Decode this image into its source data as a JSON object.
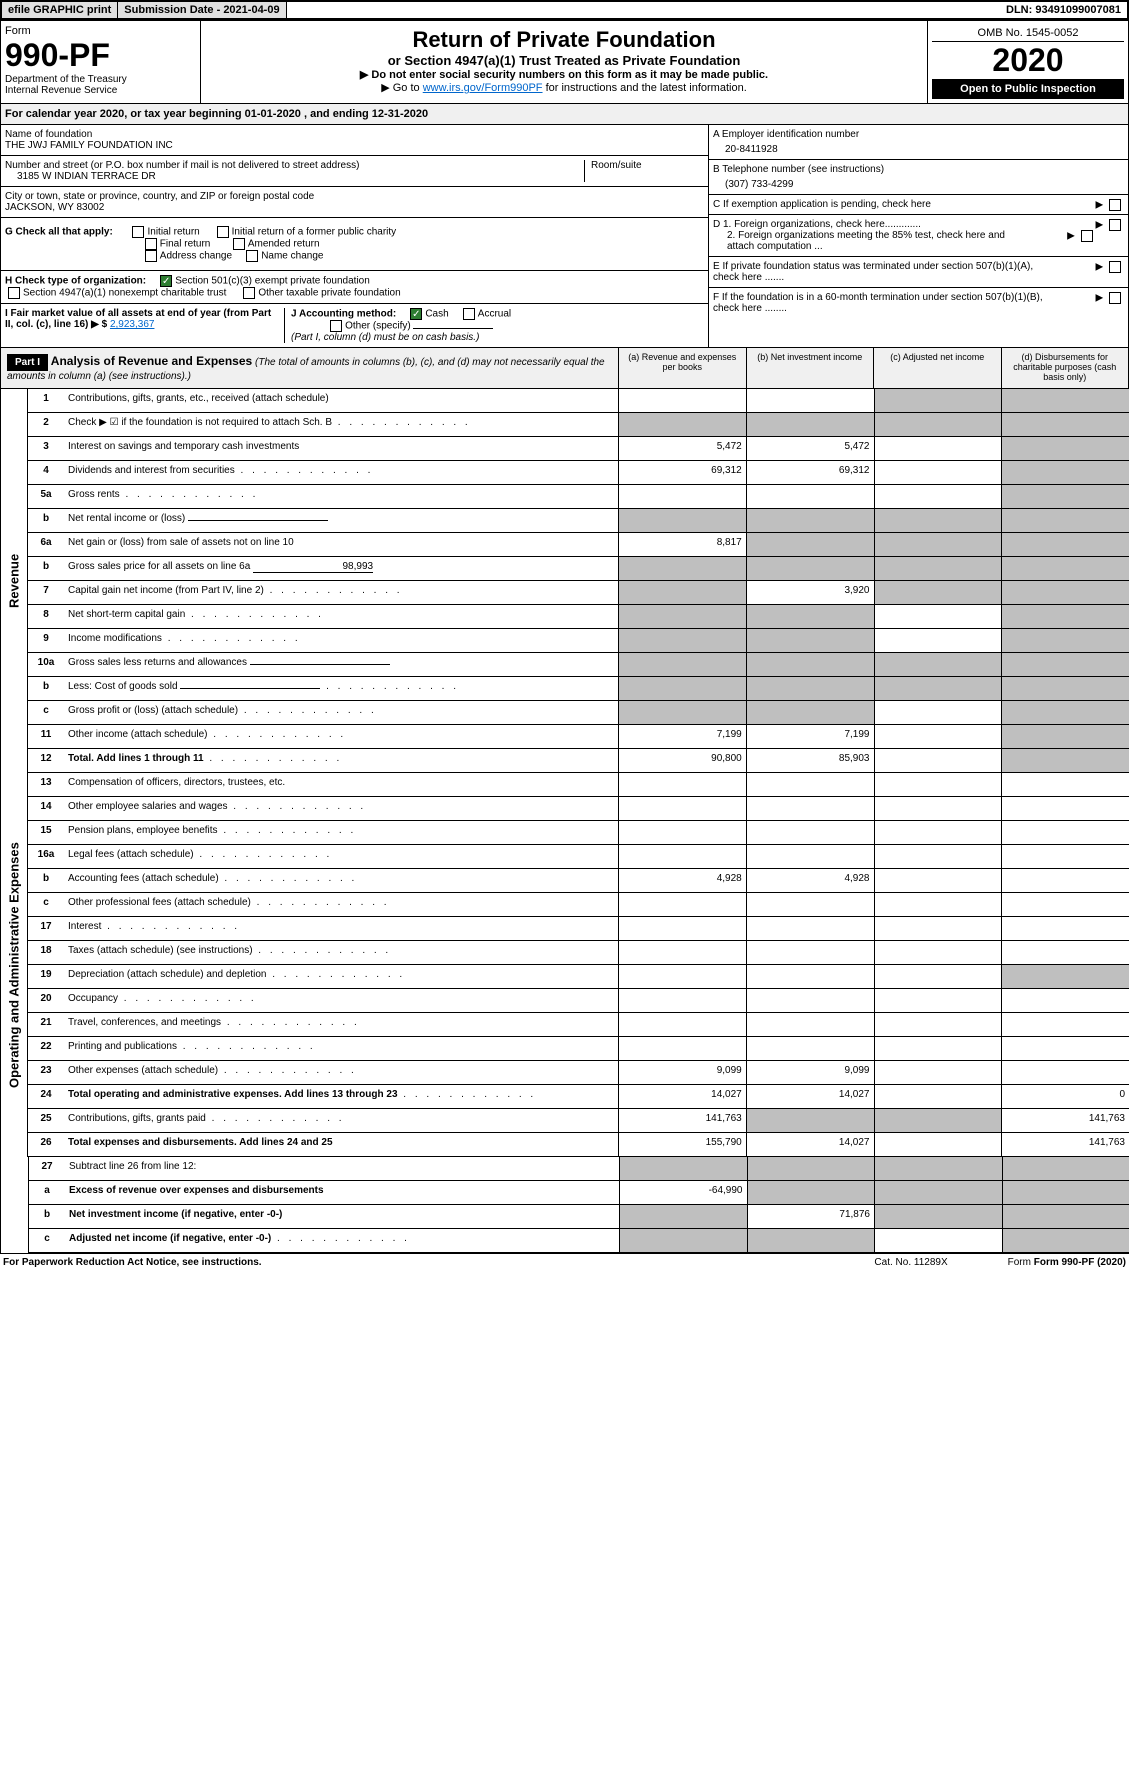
{
  "header": {
    "efile": "efile GRAPHIC print",
    "submission": "Submission Date - 2021-04-09",
    "dln": "DLN: 93491099007081"
  },
  "form": {
    "label": "Form",
    "number": "990-PF",
    "dept": "Department of the Treasury",
    "irs": "Internal Revenue Service",
    "title": "Return of Private Foundation",
    "subtitle": "or Section 4947(a)(1) Trust Treated as Private Foundation",
    "note1": "▶ Do not enter social security numbers on this form as it may be made public.",
    "note2": "▶ Go to ",
    "link": "www.irs.gov/Form990PF",
    "note3": " for instructions and the latest information.",
    "omb": "OMB No. 1545-0052",
    "year": "2020",
    "open": "Open to Public Inspection"
  },
  "calyear": "For calendar year 2020, or tax year beginning 01-01-2020                            , and ending 12-31-2020",
  "foundation": {
    "name_label": "Name of foundation",
    "name": "THE JWJ FAMILY FOUNDATION INC",
    "addr_label": "Number and street (or P.O. box number if mail is not delivered to street address)",
    "room_label": "Room/suite",
    "addr": "3185 W INDIAN TERRACE DR",
    "city_label": "City or town, state or province, country, and ZIP or foreign postal code",
    "city": "JACKSON, WY  83002"
  },
  "right_info": {
    "a_label": "A Employer identification number",
    "a_val": "20-8411928",
    "b_label": "B Telephone number (see instructions)",
    "b_val": "(307) 733-4299",
    "c_label": "C  If exemption application is pending, check here",
    "d1": "D 1. Foreign organizations, check here.............",
    "d2": "2. Foreign organizations meeting the 85% test, check here and attach computation ...",
    "e": "E  If private foundation status was terminated under section 507(b)(1)(A), check here .......",
    "f": "F  If the foundation is in a 60-month termination under section 507(b)(1)(B), check here ........"
  },
  "checks": {
    "g_label": "G Check all that apply:",
    "initial": "Initial return",
    "initial_former": "Initial return of a former public charity",
    "final": "Final return",
    "amended": "Amended return",
    "addr_change": "Address change",
    "name_change": "Name change",
    "h_label": "H Check type of organization:",
    "h1": "Section 501(c)(3) exempt private foundation",
    "h2": "Section 4947(a)(1) nonexempt charitable trust",
    "h3": "Other taxable private foundation",
    "i_label": "I Fair market value of all assets at end of year (from Part II, col. (c), line 16) ▶ $",
    "i_val": "2,923,367",
    "j_label": "J Accounting method:",
    "cash": "Cash",
    "accrual": "Accrual",
    "other": "Other (specify)",
    "j_note": "(Part I, column (d) must be on cash basis.)"
  },
  "part1": {
    "label": "Part I",
    "title": "Analysis of Revenue and Expenses",
    "title_note": "(The total of amounts in columns (b), (c), and (d) may not necessarily equal the amounts in column (a) (see instructions).)",
    "col_a": "(a)    Revenue and expenses per books",
    "col_b": "(b)  Net investment income",
    "col_c": "(c)  Adjusted net income",
    "col_d": "(d)  Disbursements for charitable purposes (cash basis only)"
  },
  "sides": {
    "revenue": "Revenue",
    "expenses": "Operating and Administrative Expenses"
  },
  "rows": [
    {
      "n": "1",
      "d": "Contributions, gifts, grants, etc., received (attach schedule)",
      "a": "",
      "b": "",
      "c": "s",
      "dd": "s"
    },
    {
      "n": "2",
      "d": "Check ▶ ☑ if the foundation is not required to attach Sch. B",
      "a": "s",
      "b": "s",
      "c": "s",
      "dd": "s",
      "dots": true
    },
    {
      "n": "3",
      "d": "Interest on savings and temporary cash investments",
      "a": "5,472",
      "b": "5,472",
      "c": "",
      "dd": "s"
    },
    {
      "n": "4",
      "d": "Dividends and interest from securities",
      "a": "69,312",
      "b": "69,312",
      "c": "",
      "dd": "s",
      "dots": true
    },
    {
      "n": "5a",
      "d": "Gross rents",
      "a": "",
      "b": "",
      "c": "",
      "dd": "s",
      "dots": true
    },
    {
      "n": "b",
      "d": "Net rental income or (loss)",
      "a": "s",
      "b": "s",
      "c": "s",
      "dd": "s",
      "uline": true
    },
    {
      "n": "6a",
      "d": "Net gain or (loss) from sale of assets not on line 10",
      "a": "8,817",
      "b": "s",
      "c": "s",
      "dd": "s"
    },
    {
      "n": "b",
      "d": "Gross sales price for all assets on line 6a",
      "a": "s",
      "b": "s",
      "c": "s",
      "dd": "s",
      "inline_val": "98,993"
    },
    {
      "n": "7",
      "d": "Capital gain net income (from Part IV, line 2)",
      "a": "s",
      "b": "3,920",
      "c": "s",
      "dd": "s",
      "dots": true
    },
    {
      "n": "8",
      "d": "Net short-term capital gain",
      "a": "s",
      "b": "s",
      "c": "",
      "dd": "s",
      "dots": true
    },
    {
      "n": "9",
      "d": "Income modifications",
      "a": "s",
      "b": "s",
      "c": "",
      "dd": "s",
      "dots": true
    },
    {
      "n": "10a",
      "d": "Gross sales less returns and allowances",
      "a": "s",
      "b": "s",
      "c": "s",
      "dd": "s",
      "uline": true
    },
    {
      "n": "b",
      "d": "Less: Cost of goods sold",
      "a": "s",
      "b": "s",
      "c": "s",
      "dd": "s",
      "dots": true,
      "uline": true
    },
    {
      "n": "c",
      "d": "Gross profit or (loss) (attach schedule)",
      "a": "s",
      "b": "s",
      "c": "",
      "dd": "s",
      "dots": true
    },
    {
      "n": "11",
      "d": "Other income (attach schedule)",
      "a": "7,199",
      "b": "7,199",
      "c": "",
      "dd": "s",
      "dots": true
    },
    {
      "n": "12",
      "d": "Total. Add lines 1 through 11",
      "a": "90,800",
      "b": "85,903",
      "c": "",
      "dd": "s",
      "bold": true,
      "dots": true
    }
  ],
  "exp_rows": [
    {
      "n": "13",
      "d": "Compensation of officers, directors, trustees, etc.",
      "a": "",
      "b": "",
      "c": "",
      "dd": ""
    },
    {
      "n": "14",
      "d": "Other employee salaries and wages",
      "a": "",
      "b": "",
      "c": "",
      "dd": "",
      "dots": true
    },
    {
      "n": "15",
      "d": "Pension plans, employee benefits",
      "a": "",
      "b": "",
      "c": "",
      "dd": "",
      "dots": true
    },
    {
      "n": "16a",
      "d": "Legal fees (attach schedule)",
      "a": "",
      "b": "",
      "c": "",
      "dd": "",
      "dots": true
    },
    {
      "n": "b",
      "d": "Accounting fees (attach schedule)",
      "a": "4,928",
      "b": "4,928",
      "c": "",
      "dd": "",
      "dots": true
    },
    {
      "n": "c",
      "d": "Other professional fees (attach schedule)",
      "a": "",
      "b": "",
      "c": "",
      "dd": "",
      "dots": true
    },
    {
      "n": "17",
      "d": "Interest",
      "a": "",
      "b": "",
      "c": "",
      "dd": "",
      "dots": true
    },
    {
      "n": "18",
      "d": "Taxes (attach schedule) (see instructions)",
      "a": "",
      "b": "",
      "c": "",
      "dd": "",
      "dots": true
    },
    {
      "n": "19",
      "d": "Depreciation (attach schedule) and depletion",
      "a": "",
      "b": "",
      "c": "",
      "dd": "s",
      "dots": true
    },
    {
      "n": "20",
      "d": "Occupancy",
      "a": "",
      "b": "",
      "c": "",
      "dd": "",
      "dots": true
    },
    {
      "n": "21",
      "d": "Travel, conferences, and meetings",
      "a": "",
      "b": "",
      "c": "",
      "dd": "",
      "dots": true
    },
    {
      "n": "22",
      "d": "Printing and publications",
      "a": "",
      "b": "",
      "c": "",
      "dd": "",
      "dots": true
    },
    {
      "n": "23",
      "d": "Other expenses (attach schedule)",
      "a": "9,099",
      "b": "9,099",
      "c": "",
      "dd": "",
      "dots": true
    },
    {
      "n": "24",
      "d": "Total operating and administrative expenses. Add lines 13 through 23",
      "a": "14,027",
      "b": "14,027",
      "c": "",
      "dd": "0",
      "bold": true,
      "dots": true
    },
    {
      "n": "25",
      "d": "Contributions, gifts, grants paid",
      "a": "141,763",
      "b": "s",
      "c": "s",
      "dd": "141,763",
      "dots": true
    },
    {
      "n": "26",
      "d": "Total expenses and disbursements. Add lines 24 and 25",
      "a": "155,790",
      "b": "14,027",
      "c": "",
      "dd": "141,763",
      "bold": true
    }
  ],
  "final_rows": [
    {
      "n": "27",
      "d": "Subtract line 26 from line 12:",
      "a": "s",
      "b": "s",
      "c": "s",
      "dd": "s"
    },
    {
      "n": "a",
      "d": "Excess of revenue over expenses and disbursements",
      "a": "-64,990",
      "b": "s",
      "c": "s",
      "dd": "s",
      "bold": true
    },
    {
      "n": "b",
      "d": "Net investment income (if negative, enter -0-)",
      "a": "s",
      "b": "71,876",
      "c": "s",
      "dd": "s",
      "bold": true
    },
    {
      "n": "c",
      "d": "Adjusted net income (if negative, enter -0-)",
      "a": "s",
      "b": "s",
      "c": "",
      "dd": "s",
      "bold": true,
      "dots": true
    }
  ],
  "footer": {
    "left": "For Paperwork Reduction Act Notice, see instructions.",
    "center": "Cat. No. 11289X",
    "right": "Form 990-PF (2020)"
  }
}
